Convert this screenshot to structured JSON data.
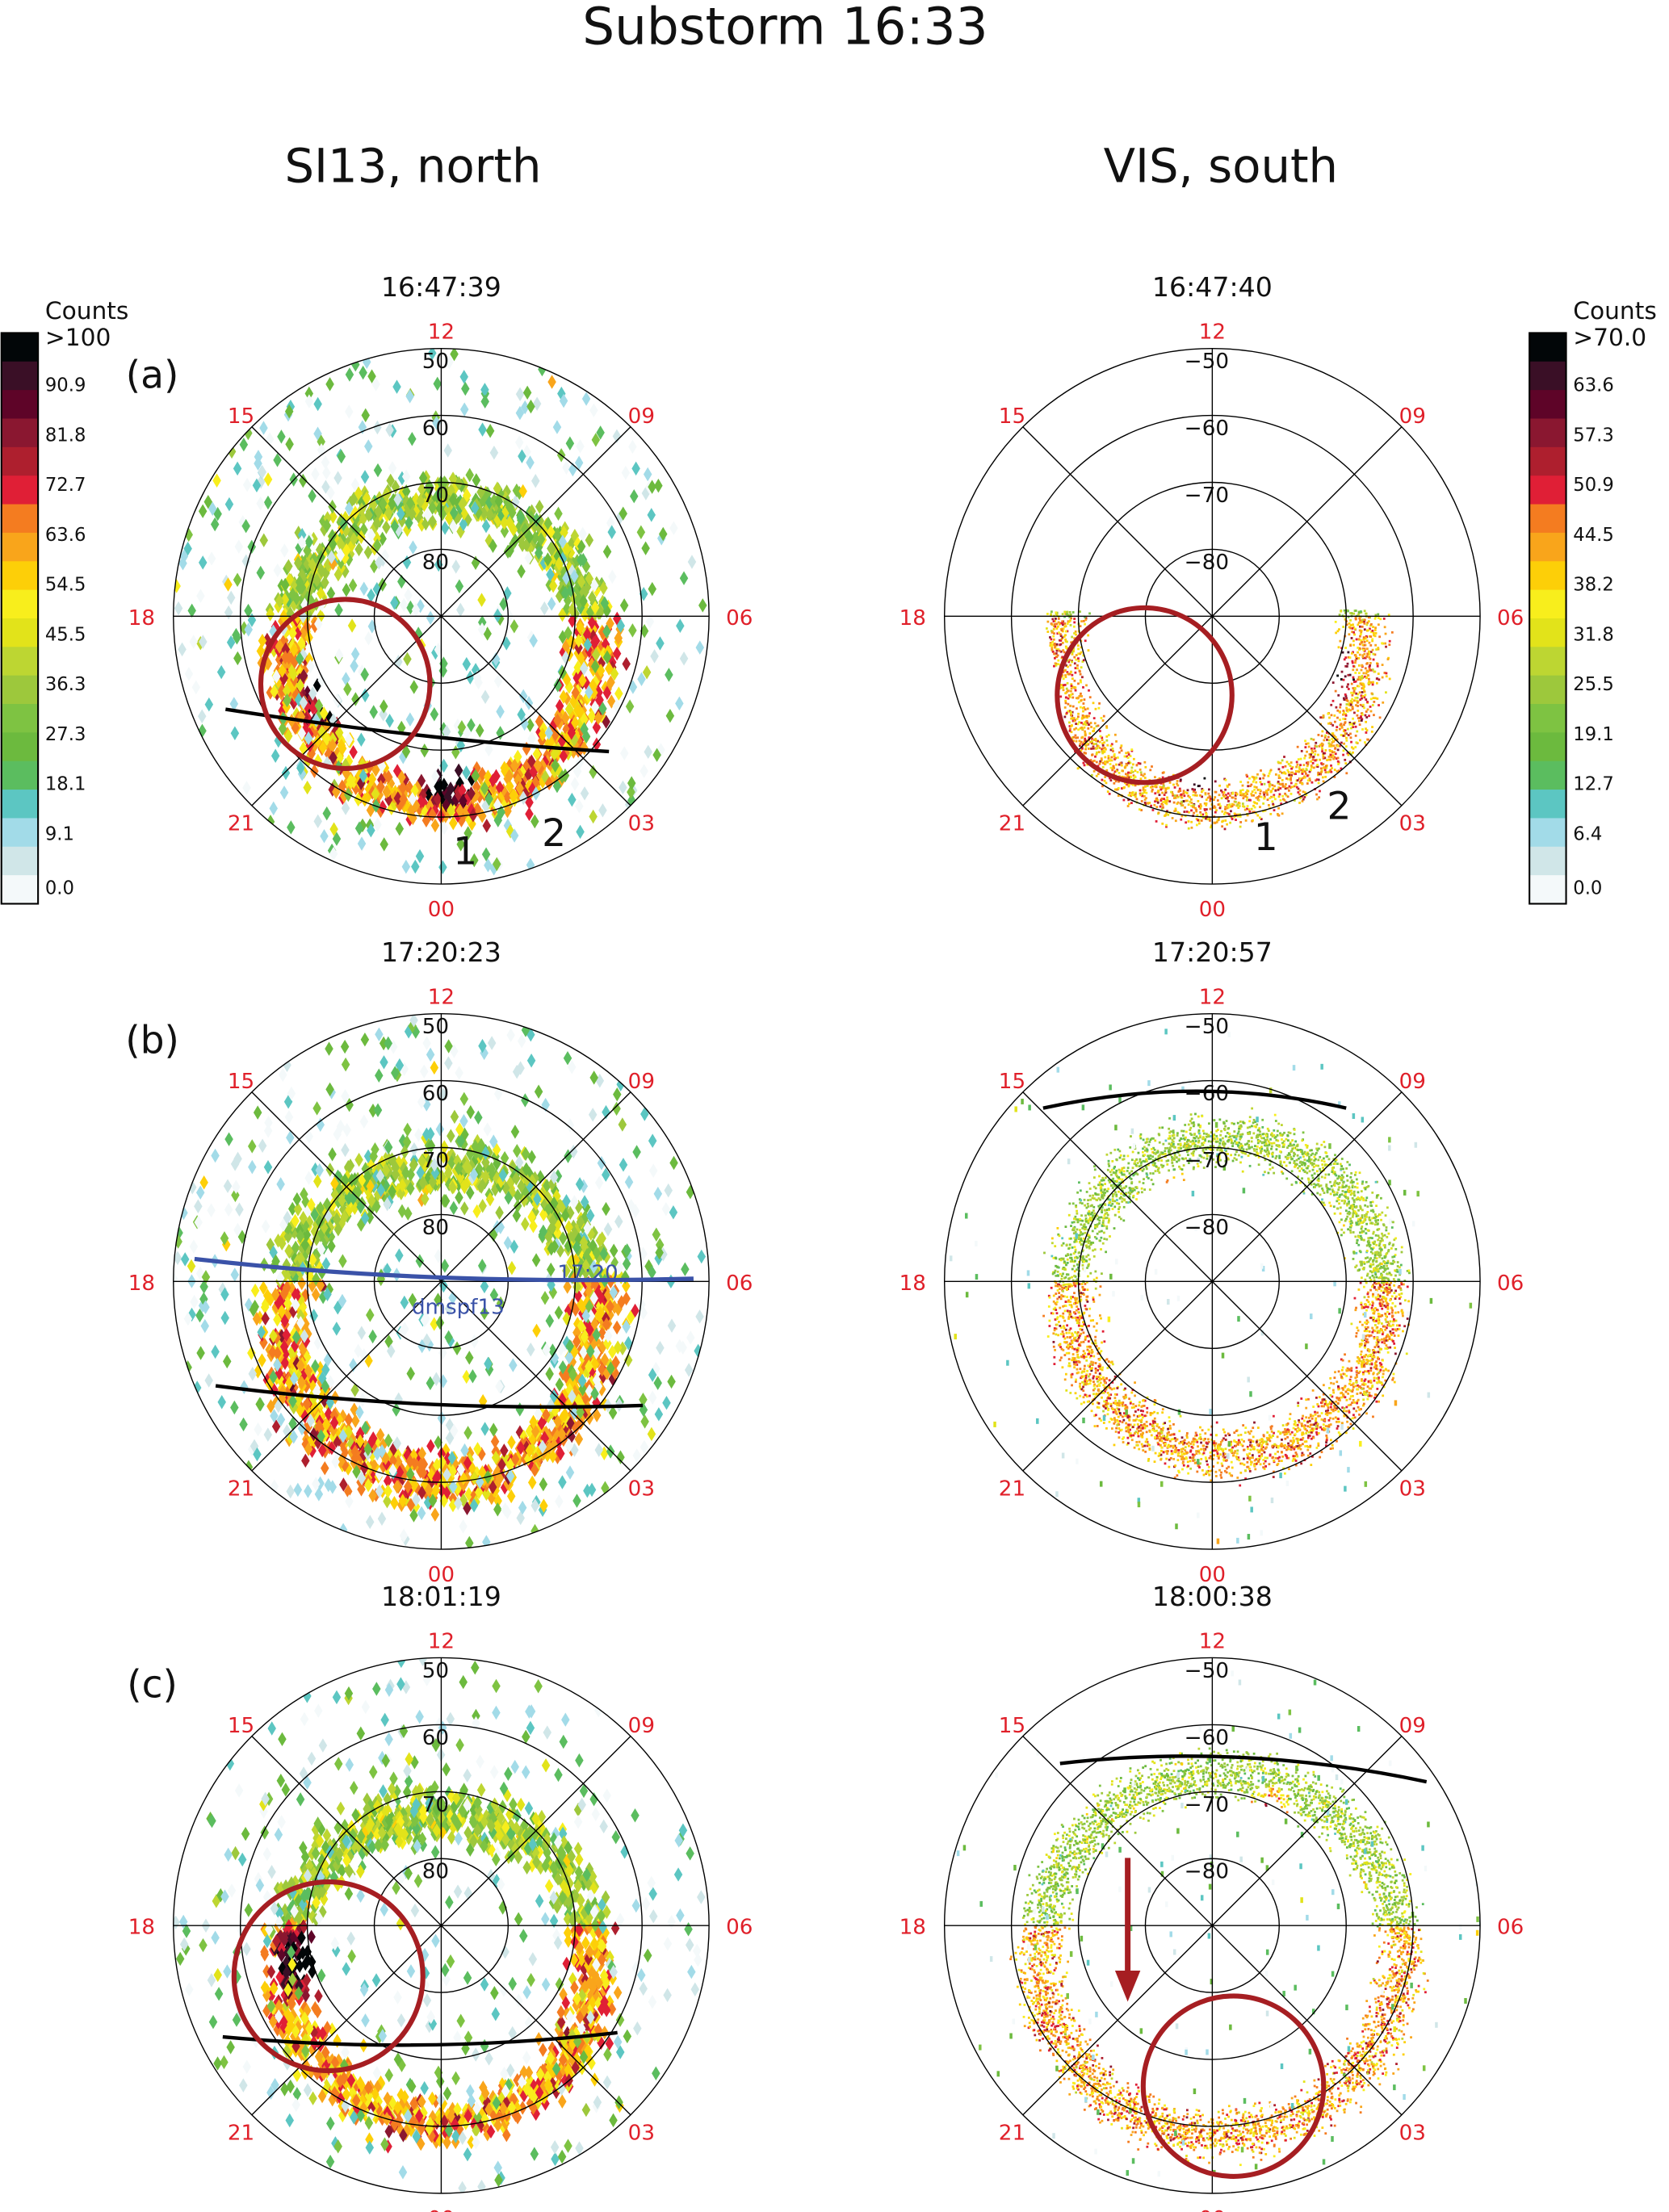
{
  "chart_data": {
    "type": "heatmap",
    "title": "Substorm 16:33",
    "columns": [
      {
        "title": "SI13, north",
        "ring_labels": [
          "50",
          "60",
          "70",
          "80"
        ],
        "ring_latitudes": [
          50,
          60,
          70,
          80
        ]
      },
      {
        "title": "VIS, south",
        "ring_labels": [
          "−50",
          "−60",
          "−70",
          "−80"
        ],
        "ring_latitudes": [
          -50,
          -60,
          -70,
          -80
        ]
      }
    ],
    "mlt_labels": {
      "top": "12",
      "bottom": "00",
      "left": "18",
      "right": "06",
      "upper_left": "15",
      "upper_right": "09",
      "lower_left": "21",
      "lower_right": "03"
    },
    "rows": [
      {
        "label": "(a)",
        "panels": [
          {
            "time": "16:47:39",
            "annotations": [
              "1",
              "2"
            ]
          },
          {
            "time": "16:47:40",
            "annotations": [
              "1",
              "2"
            ]
          }
        ]
      },
      {
        "label": "(b)",
        "panels": [
          {
            "time": "17:20:23",
            "annotations": [
              "dmspf13",
              "17:20"
            ]
          },
          {
            "time": "17:20:57",
            "annotations": []
          }
        ]
      },
      {
        "label": "(c)",
        "panels": [
          {
            "time": "18:01:19",
            "annotations": []
          },
          {
            "time": "18:00:38",
            "annotations": []
          }
        ]
      }
    ],
    "colorbars": [
      {
        "title": "Counts",
        "side": "left",
        "labels": [
          ">100",
          "90.9",
          "81.8",
          "72.7",
          "63.6",
          "54.5",
          "45.5",
          "36.3",
          "27.3",
          "18.1",
          "9.1",
          "0.0"
        ]
      },
      {
        "title": "Counts",
        "side": "right",
        "labels": [
          ">70.0",
          "63.6",
          "57.3",
          "50.9",
          "44.5",
          "38.2",
          "31.8",
          "25.5",
          "19.1",
          "12.7",
          "6.4",
          "0.0"
        ]
      }
    ],
    "colors": [
      "#020608",
      "#3a0f26",
      "#5e0428",
      "#8a1730",
      "#ae1f2e",
      "#e01f36",
      "#f47c20",
      "#f9a51b",
      "#fdcf08",
      "#f8ee1c",
      "#e2e31a",
      "#bdd632",
      "#9dc83c",
      "#7ec342",
      "#6cba3e",
      "#5bbd5f",
      "#5cc6c2",
      "#a2dbe8",
      "#d0e6e8",
      "#f4f9fa"
    ],
    "annotation_colors": {
      "circle": "#a61e22",
      "boundary": "#000000",
      "dmsp": "#3a52a8",
      "arrow": "#a61e22"
    }
  }
}
